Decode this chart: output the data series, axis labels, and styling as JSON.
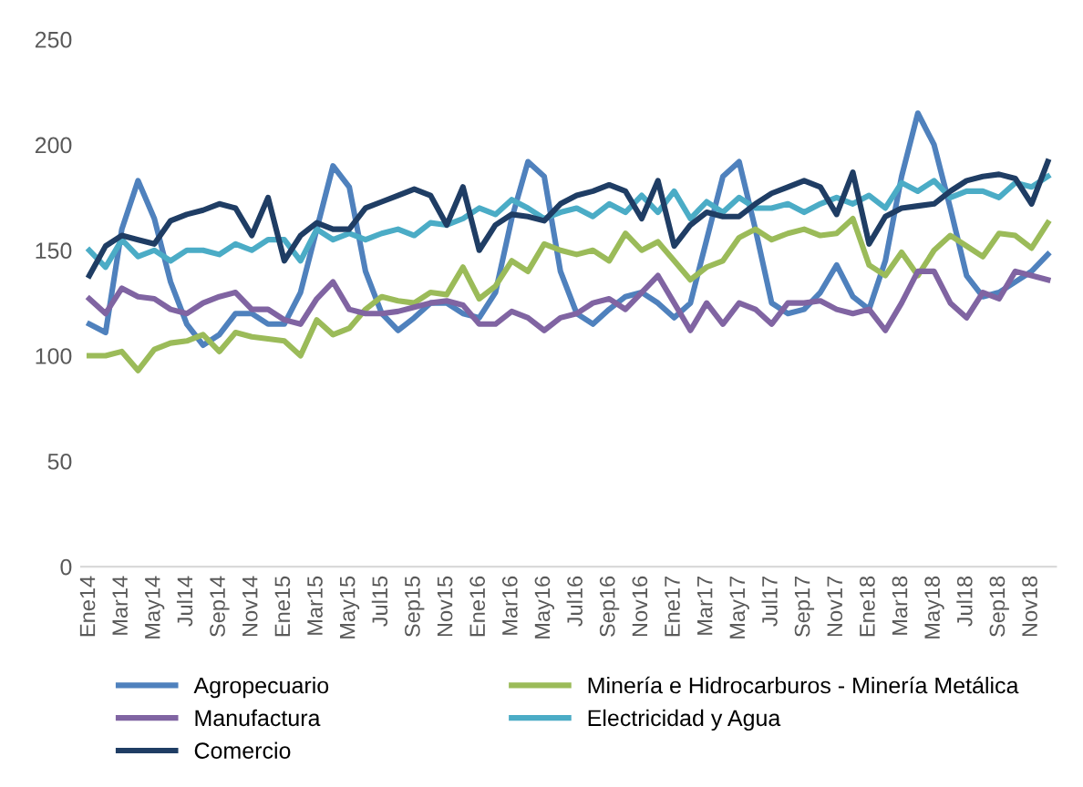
{
  "chart_data": {
    "type": "line",
    "categories": [
      "Ene14",
      null,
      "Mar14",
      null,
      "May14",
      null,
      "Jul14",
      null,
      "Sep14",
      null,
      "Nov14",
      null,
      "Ene15",
      null,
      "Mar15",
      null,
      "May15",
      null,
      "Jul15",
      null,
      "Sep15",
      null,
      "Nov15",
      null,
      "Ene16",
      null,
      "Mar16",
      null,
      "May16",
      null,
      "Jul16",
      null,
      "Sep16",
      null,
      "Nov16",
      null,
      "Ene17",
      null,
      "Mar17",
      null,
      "May17",
      null,
      "Jul17",
      null,
      "Sep17",
      null,
      "Nov17",
      null,
      "Ene18",
      null,
      "Mar18",
      null,
      "May18",
      null,
      "Jul18",
      null,
      "Sep18",
      null,
      "Nov18",
      null
    ],
    "series": [
      {
        "name": "Agropecuario",
        "color": "#4f81bd",
        "values": [
          115,
          111,
          160,
          183,
          165,
          135,
          115,
          105,
          110,
          120,
          120,
          115,
          115,
          130,
          160,
          190,
          180,
          140,
          120,
          112,
          118,
          125,
          125,
          120,
          118,
          130,
          165,
          192,
          185,
          140,
          120,
          115,
          122,
          128,
          130,
          125,
          118,
          125,
          155,
          185,
          192,
          160,
          125,
          120,
          122,
          130,
          143,
          128,
          122,
          145,
          185,
          215,
          200,
          170,
          138,
          128,
          130,
          135,
          140,
          148
        ]
      },
      {
        "name": "Minería e Hidrocarburos - Minería Metálica",
        "color": "#9bbb59",
        "values": [
          100,
          100,
          102,
          93,
          103,
          106,
          107,
          110,
          102,
          111,
          109,
          108,
          107,
          100,
          117,
          110,
          113,
          122,
          128,
          126,
          125,
          130,
          129,
          142,
          127,
          133,
          145,
          140,
          153,
          150,
          148,
          150,
          145,
          158,
          150,
          154,
          145,
          136,
          142,
          145,
          156,
          160,
          155,
          158,
          160,
          157,
          158,
          165,
          143,
          138,
          149,
          138,
          150,
          157,
          152,
          147,
          158,
          157,
          151,
          163
        ]
      },
      {
        "name": "Manufactura",
        "color": "#8064a2",
        "values": [
          127,
          120,
          132,
          128,
          127,
          122,
          120,
          125,
          128,
          130,
          122,
          122,
          117,
          115,
          127,
          135,
          122,
          120,
          120,
          121,
          123,
          125,
          126,
          124,
          115,
          115,
          121,
          118,
          112,
          118,
          120,
          125,
          127,
          122,
          130,
          138,
          125,
          112,
          125,
          115,
          125,
          122,
          115,
          125,
          125,
          126,
          122,
          120,
          122,
          112,
          125,
          140,
          140,
          125,
          118,
          130,
          127,
          140,
          138,
          136
        ]
      },
      {
        "name": "Electricidad y Agua",
        "color": "#4bacc6",
        "values": [
          150,
          142,
          155,
          147,
          150,
          145,
          150,
          150,
          148,
          153,
          150,
          155,
          155,
          145,
          160,
          155,
          158,
          155,
          158,
          160,
          157,
          163,
          162,
          165,
          170,
          167,
          174,
          170,
          165,
          168,
          170,
          166,
          172,
          168,
          176,
          168,
          178,
          165,
          173,
          168,
          175,
          170,
          170,
          172,
          168,
          172,
          175,
          172,
          176,
          170,
          182,
          178,
          183,
          175,
          178,
          178,
          175,
          182,
          180,
          185
        ]
      },
      {
        "name": "Comercio",
        "color": "#1f3d64",
        "values": [
          138,
          152,
          157,
          155,
          153,
          164,
          167,
          169,
          172,
          170,
          157,
          175,
          145,
          157,
          163,
          160,
          160,
          170,
          173,
          176,
          179,
          176,
          162,
          180,
          150,
          162,
          167,
          166,
          164,
          172,
          176,
          178,
          181,
          178,
          165,
          183,
          152,
          162,
          168,
          166,
          166,
          172,
          177,
          180,
          183,
          180,
          167,
          187,
          153,
          166,
          170,
          171,
          172,
          178,
          183,
          185,
          186,
          184,
          172,
          192
        ]
      }
    ],
    "ylim": [
      0,
      250
    ],
    "yticks": [
      0,
      50,
      100,
      150,
      200,
      250
    ],
    "grid": false,
    "legend": "bottom",
    "marker": "none",
    "line_style": "solid"
  }
}
